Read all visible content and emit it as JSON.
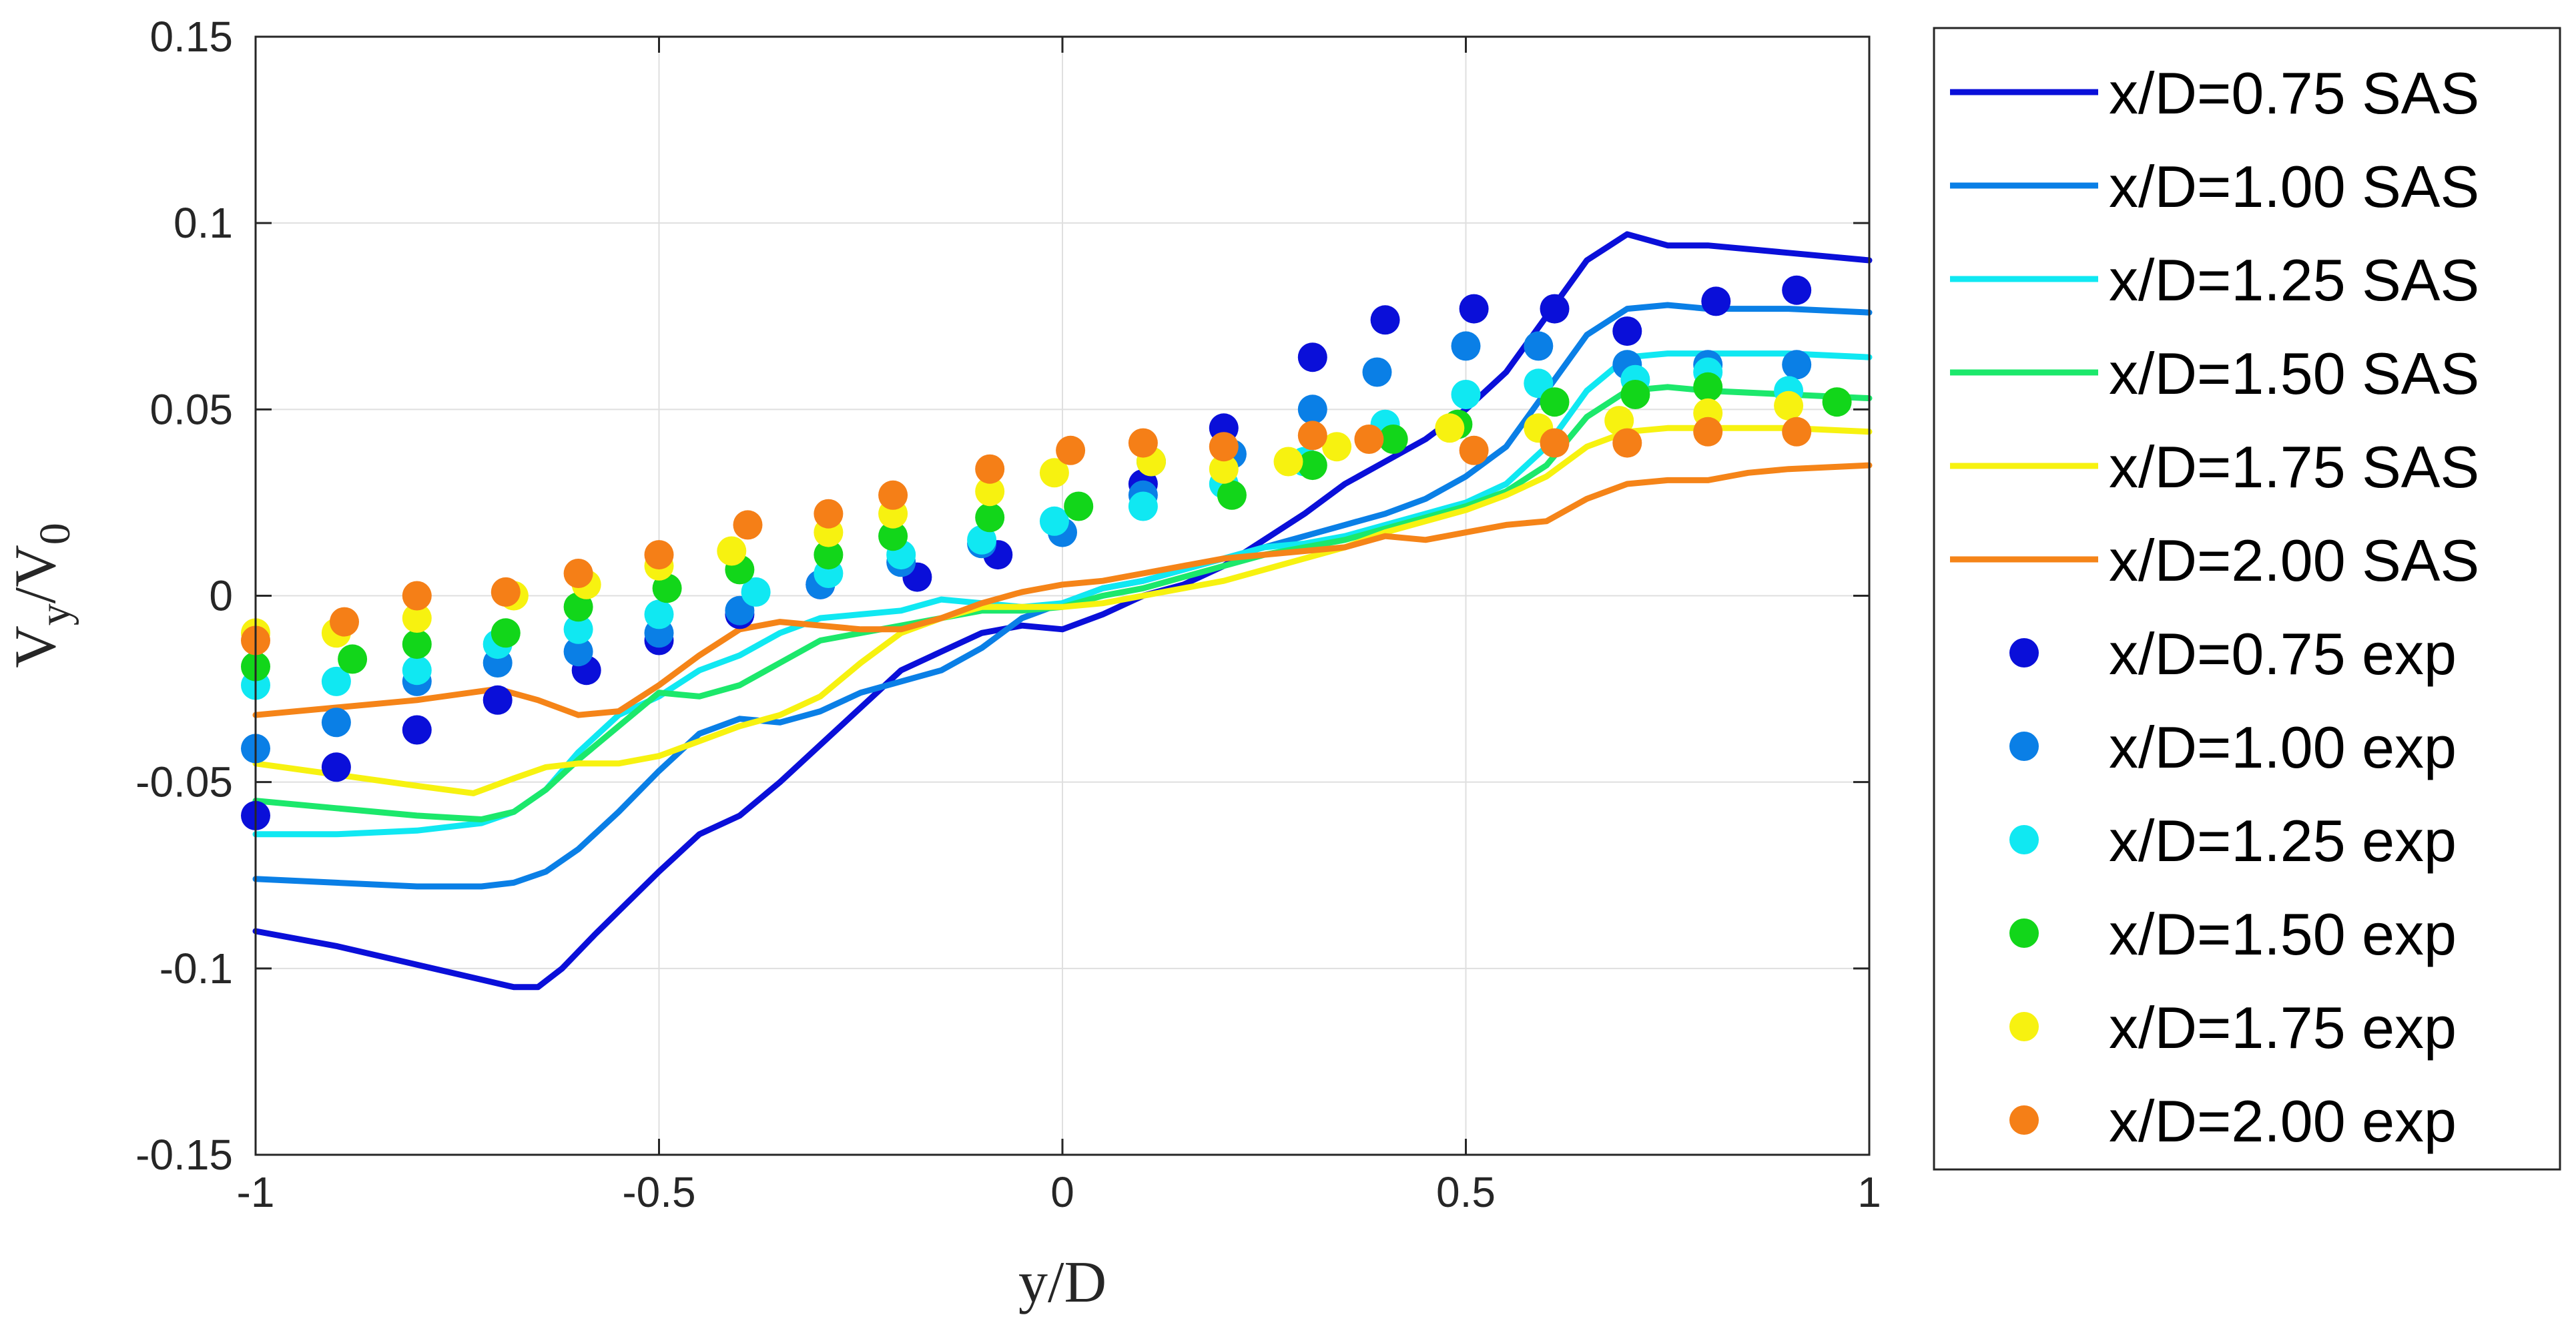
{
  "chart_data": {
    "type": "line",
    "xlabel": "y/D",
    "ylabel": {
      "main": "V",
      "sub1": "y",
      "mid": "/V",
      "sub2": "0"
    },
    "xlim": [
      -1,
      1
    ],
    "ylim": [
      -0.15,
      0.15
    ],
    "grid": true,
    "legend_position": "outside-right",
    "xticks": [
      {
        "value": -1,
        "label": "-1"
      },
      {
        "value": -0.5,
        "label": "-0.5"
      },
      {
        "value": 0,
        "label": "0"
      },
      {
        "value": 0.5,
        "label": "0.5"
      },
      {
        "value": 1,
        "label": "1"
      }
    ],
    "yticks": [
      {
        "value": -0.15,
        "label": "-0.15"
      },
      {
        "value": -0.1,
        "label": "-0.1"
      },
      {
        "value": -0.05,
        "label": "-0.05"
      },
      {
        "value": 0,
        "label": "0"
      },
      {
        "value": 0.05,
        "label": "0.05"
      },
      {
        "value": 0.1,
        "label": "0.1"
      },
      {
        "value": 0.15,
        "label": "0.15"
      }
    ],
    "series": [
      {
        "name": "x/D=0.75 SAS",
        "kind": "line",
        "color": "#0a0fd9",
        "x": [
          -1,
          -0.9,
          -0.8,
          -0.72,
          -0.68,
          -0.65,
          -0.62,
          -0.58,
          -0.5,
          -0.45,
          -0.4,
          -0.35,
          -0.3,
          -0.25,
          -0.2,
          -0.15,
          -0.1,
          -0.05,
          0,
          0.05,
          0.1,
          0.15,
          0.2,
          0.25,
          0.3,
          0.35,
          0.4,
          0.45,
          0.5,
          0.55,
          0.6,
          0.65,
          0.7,
          0.75,
          0.8,
          0.9,
          1.0
        ],
        "y": [
          -0.09,
          -0.094,
          -0.099,
          -0.103,
          -0.105,
          -0.105,
          -0.1,
          -0.091,
          -0.074,
          -0.064,
          -0.059,
          -0.05,
          -0.04,
          -0.03,
          -0.02,
          -0.015,
          -0.01,
          -0.008,
          -0.009,
          -0.005,
          0,
          0.003,
          0.008,
          0.015,
          0.022,
          0.03,
          0.036,
          0.042,
          0.05,
          0.06,
          0.075,
          0.09,
          0.097,
          0.094,
          0.094,
          0.092,
          0.09
        ]
      },
      {
        "name": "x/D=1.00 SAS",
        "kind": "line",
        "color": "#0a7fe6",
        "x": [
          -1,
          -0.9,
          -0.8,
          -0.72,
          -0.68,
          -0.64,
          -0.6,
          -0.55,
          -0.5,
          -0.45,
          -0.4,
          -0.35,
          -0.3,
          -0.25,
          -0.2,
          -0.15,
          -0.1,
          -0.05,
          0,
          0.05,
          0.1,
          0.15,
          0.2,
          0.25,
          0.3,
          0.35,
          0.4,
          0.45,
          0.5,
          0.55,
          0.6,
          0.65,
          0.7,
          0.75,
          0.8,
          0.9,
          1.0
        ],
        "y": [
          -0.076,
          -0.077,
          -0.078,
          -0.078,
          -0.077,
          -0.074,
          -0.068,
          -0.058,
          -0.047,
          -0.037,
          -0.033,
          -0.034,
          -0.031,
          -0.026,
          -0.023,
          -0.02,
          -0.014,
          -0.006,
          -0.002,
          0.002,
          0.004,
          0.007,
          0.01,
          0.013,
          0.016,
          0.019,
          0.022,
          0.026,
          0.032,
          0.04,
          0.055,
          0.07,
          0.077,
          0.078,
          0.077,
          0.077,
          0.076
        ]
      },
      {
        "name": "x/D=1.25 SAS",
        "kind": "line",
        "color": "#10e8f2",
        "x": [
          -1,
          -0.9,
          -0.8,
          -0.72,
          -0.68,
          -0.64,
          -0.6,
          -0.55,
          -0.5,
          -0.45,
          -0.4,
          -0.35,
          -0.3,
          -0.25,
          -0.2,
          -0.15,
          -0.1,
          -0.05,
          0,
          0.05,
          0.1,
          0.15,
          0.2,
          0.25,
          0.3,
          0.35,
          0.4,
          0.45,
          0.5,
          0.55,
          0.6,
          0.65,
          0.7,
          0.75,
          0.8,
          0.9,
          1.0
        ],
        "y": [
          -0.064,
          -0.064,
          -0.063,
          -0.061,
          -0.058,
          -0.052,
          -0.042,
          -0.032,
          -0.027,
          -0.02,
          -0.016,
          -0.01,
          -0.006,
          -0.005,
          -0.004,
          -0.001,
          -0.002,
          -0.003,
          -0.002,
          0.002,
          0.004,
          0.007,
          0.01,
          0.013,
          0.014,
          0.016,
          0.019,
          0.022,
          0.025,
          0.03,
          0.04,
          0.055,
          0.064,
          0.065,
          0.065,
          0.065,
          0.064
        ]
      },
      {
        "name": "x/D=1.50 SAS",
        "kind": "line",
        "color": "#1ce86b",
        "x": [
          -1,
          -0.9,
          -0.8,
          -0.72,
          -0.68,
          -0.64,
          -0.6,
          -0.55,
          -0.5,
          -0.45,
          -0.4,
          -0.35,
          -0.3,
          -0.25,
          -0.2,
          -0.15,
          -0.1,
          -0.05,
          0,
          0.05,
          0.1,
          0.15,
          0.2,
          0.25,
          0.3,
          0.35,
          0.4,
          0.45,
          0.5,
          0.55,
          0.6,
          0.65,
          0.7,
          0.75,
          0.8,
          0.9,
          1.0
        ],
        "y": [
          -0.055,
          -0.057,
          -0.059,
          -0.06,
          -0.058,
          -0.052,
          -0.044,
          -0.035,
          -0.026,
          -0.027,
          -0.024,
          -0.018,
          -0.012,
          -0.01,
          -0.008,
          -0.006,
          -0.004,
          -0.004,
          -0.003,
          0,
          0.002,
          0.005,
          0.008,
          0.011,
          0.013,
          0.015,
          0.018,
          0.021,
          0.024,
          0.028,
          0.035,
          0.048,
          0.055,
          0.056,
          0.055,
          0.054,
          0.053
        ]
      },
      {
        "name": "x/D=1.75 SAS",
        "kind": "line",
        "color": "#f7f210",
        "x": [
          -1,
          -0.9,
          -0.8,
          -0.73,
          -0.68,
          -0.64,
          -0.6,
          -0.55,
          -0.5,
          -0.45,
          -0.4,
          -0.35,
          -0.3,
          -0.25,
          -0.2,
          -0.15,
          -0.1,
          -0.05,
          0,
          0.05,
          0.1,
          0.15,
          0.2,
          0.25,
          0.3,
          0.35,
          0.4,
          0.45,
          0.5,
          0.55,
          0.6,
          0.65,
          0.7,
          0.75,
          0.8,
          0.9,
          1.0
        ],
        "y": [
          -0.045,
          -0.048,
          -0.051,
          -0.053,
          -0.049,
          -0.046,
          -0.045,
          -0.045,
          -0.043,
          -0.039,
          -0.035,
          -0.032,
          -0.027,
          -0.018,
          -0.01,
          -0.006,
          -0.003,
          -0.003,
          -0.003,
          -0.002,
          0,
          0.002,
          0.004,
          0.007,
          0.01,
          0.013,
          0.017,
          0.02,
          0.023,
          0.027,
          0.032,
          0.04,
          0.044,
          0.045,
          0.045,
          0.045,
          0.044
        ]
      },
      {
        "name": "x/D=2.00 SAS",
        "kind": "line",
        "color": "#f58418",
        "x": [
          -1,
          -0.9,
          -0.8,
          -0.7,
          -0.65,
          -0.6,
          -0.55,
          -0.5,
          -0.45,
          -0.4,
          -0.35,
          -0.3,
          -0.25,
          -0.2,
          -0.15,
          -0.1,
          -0.05,
          0,
          0.05,
          0.1,
          0.15,
          0.2,
          0.25,
          0.3,
          0.35,
          0.4,
          0.45,
          0.5,
          0.55,
          0.6,
          0.65,
          0.7,
          0.75,
          0.8,
          0.85,
          0.9,
          1.0
        ],
        "y": [
          -0.032,
          -0.03,
          -0.028,
          -0.025,
          -0.028,
          -0.032,
          -0.031,
          -0.024,
          -0.016,
          -0.009,
          -0.007,
          -0.008,
          -0.009,
          -0.009,
          -0.006,
          -0.002,
          0.001,
          0.003,
          0.004,
          0.006,
          0.008,
          0.01,
          0.011,
          0.012,
          0.013,
          0.016,
          0.015,
          0.017,
          0.019,
          0.02,
          0.026,
          0.03,
          0.031,
          0.031,
          0.033,
          0.034,
          0.035
        ]
      },
      {
        "name": "x/D=0.75 exp",
        "kind": "marker",
        "color": "#0a0fd9",
        "x": [
          -1,
          -0.9,
          -0.8,
          -0.7,
          -0.59,
          -0.5,
          -0.4,
          -0.3,
          -0.18,
          -0.08,
          0.1,
          0.2,
          0.31,
          0.4,
          0.51,
          0.61,
          0.7,
          0.81,
          0.91
        ],
        "y": [
          -0.059,
          -0.046,
          -0.036,
          -0.028,
          -0.02,
          -0.012,
          -0.005,
          0.003,
          0.005,
          0.011,
          0.03,
          0.045,
          0.064,
          0.074,
          0.077,
          0.077,
          0.071,
          0.079,
          0.082
        ]
      },
      {
        "name": "x/D=1.00 exp",
        "kind": "marker",
        "color": "#0a7fe6",
        "x": [
          -1,
          -0.9,
          -0.8,
          -0.7,
          -0.6,
          -0.5,
          -0.4,
          -0.3,
          -0.2,
          -0.1,
          0,
          0.1,
          0.21,
          0.31,
          0.39,
          0.5,
          0.59,
          0.7,
          0.8,
          0.91
        ],
        "y": [
          -0.041,
          -0.034,
          -0.023,
          -0.018,
          -0.015,
          -0.01,
          -0.004,
          0.003,
          0.009,
          0.014,
          0.017,
          0.027,
          0.038,
          0.05,
          0.06,
          0.067,
          0.067,
          0.062,
          0.062,
          0.062
        ]
      },
      {
        "name": "x/D=1.25 exp",
        "kind": "marker",
        "color": "#10e8f2",
        "x": [
          -1,
          -0.9,
          -0.8,
          -0.7,
          -0.6,
          -0.5,
          -0.38,
          -0.29,
          -0.2,
          -0.1,
          -0.01,
          0.1,
          0.2,
          0.3,
          0.4,
          0.5,
          0.59,
          0.71,
          0.8,
          0.9
        ],
        "y": [
          -0.024,
          -0.023,
          -0.02,
          -0.013,
          -0.009,
          -0.005,
          0.001,
          0.006,
          0.011,
          0.015,
          0.02,
          0.024,
          0.03,
          0.036,
          0.046,
          0.054,
          0.057,
          0.058,
          0.06,
          0.055
        ]
      },
      {
        "name": "x/D=1.50 exp",
        "kind": "marker",
        "color": "#12d61a",
        "x": [
          -1,
          -0.88,
          -0.8,
          -0.69,
          -0.6,
          -0.49,
          -0.4,
          -0.29,
          -0.21,
          -0.09,
          0.02,
          0.11,
          0.21,
          0.31,
          0.41,
          0.49,
          0.61,
          0.71,
          0.8,
          0.96
        ],
        "y": [
          -0.019,
          -0.017,
          -0.013,
          -0.01,
          -0.003,
          0.002,
          0.007,
          0.011,
          0.016,
          0.021,
          0.024,
          0.036,
          0.027,
          0.035,
          0.042,
          0.046,
          0.052,
          0.054,
          0.056,
          0.052
        ]
      },
      {
        "name": "x/D=1.75 exp",
        "kind": "marker",
        "color": "#f7f210",
        "x": [
          -1,
          -0.9,
          -0.8,
          -0.68,
          -0.59,
          -0.5,
          -0.41,
          -0.29,
          -0.21,
          -0.09,
          -0.01,
          0.11,
          0.2,
          0.28,
          0.34,
          0.48,
          0.59,
          0.69,
          0.8,
          0.9
        ],
        "y": [
          -0.01,
          -0.01,
          -0.006,
          0,
          0.003,
          0.008,
          0.012,
          0.017,
          0.022,
          0.028,
          0.033,
          0.036,
          0.034,
          0.036,
          0.04,
          0.045,
          0.045,
          0.047,
          0.049,
          0.051
        ]
      },
      {
        "name": "x/D=2.00 exp",
        "kind": "marker",
        "color": "#f57f17",
        "x": [
          -1,
          -0.89,
          -0.8,
          -0.69,
          -0.6,
          -0.5,
          -0.39,
          -0.29,
          -0.21,
          -0.09,
          0.01,
          0.1,
          0.2,
          0.31,
          0.38,
          0.51,
          0.61,
          0.7,
          0.8,
          0.91
        ],
        "y": [
          -0.012,
          -0.007,
          0,
          0.001,
          0.006,
          0.011,
          0.019,
          0.022,
          0.027,
          0.034,
          0.039,
          0.041,
          0.04,
          0.043,
          0.042,
          0.039,
          0.041,
          0.041,
          0.044,
          0.044
        ]
      }
    ]
  }
}
